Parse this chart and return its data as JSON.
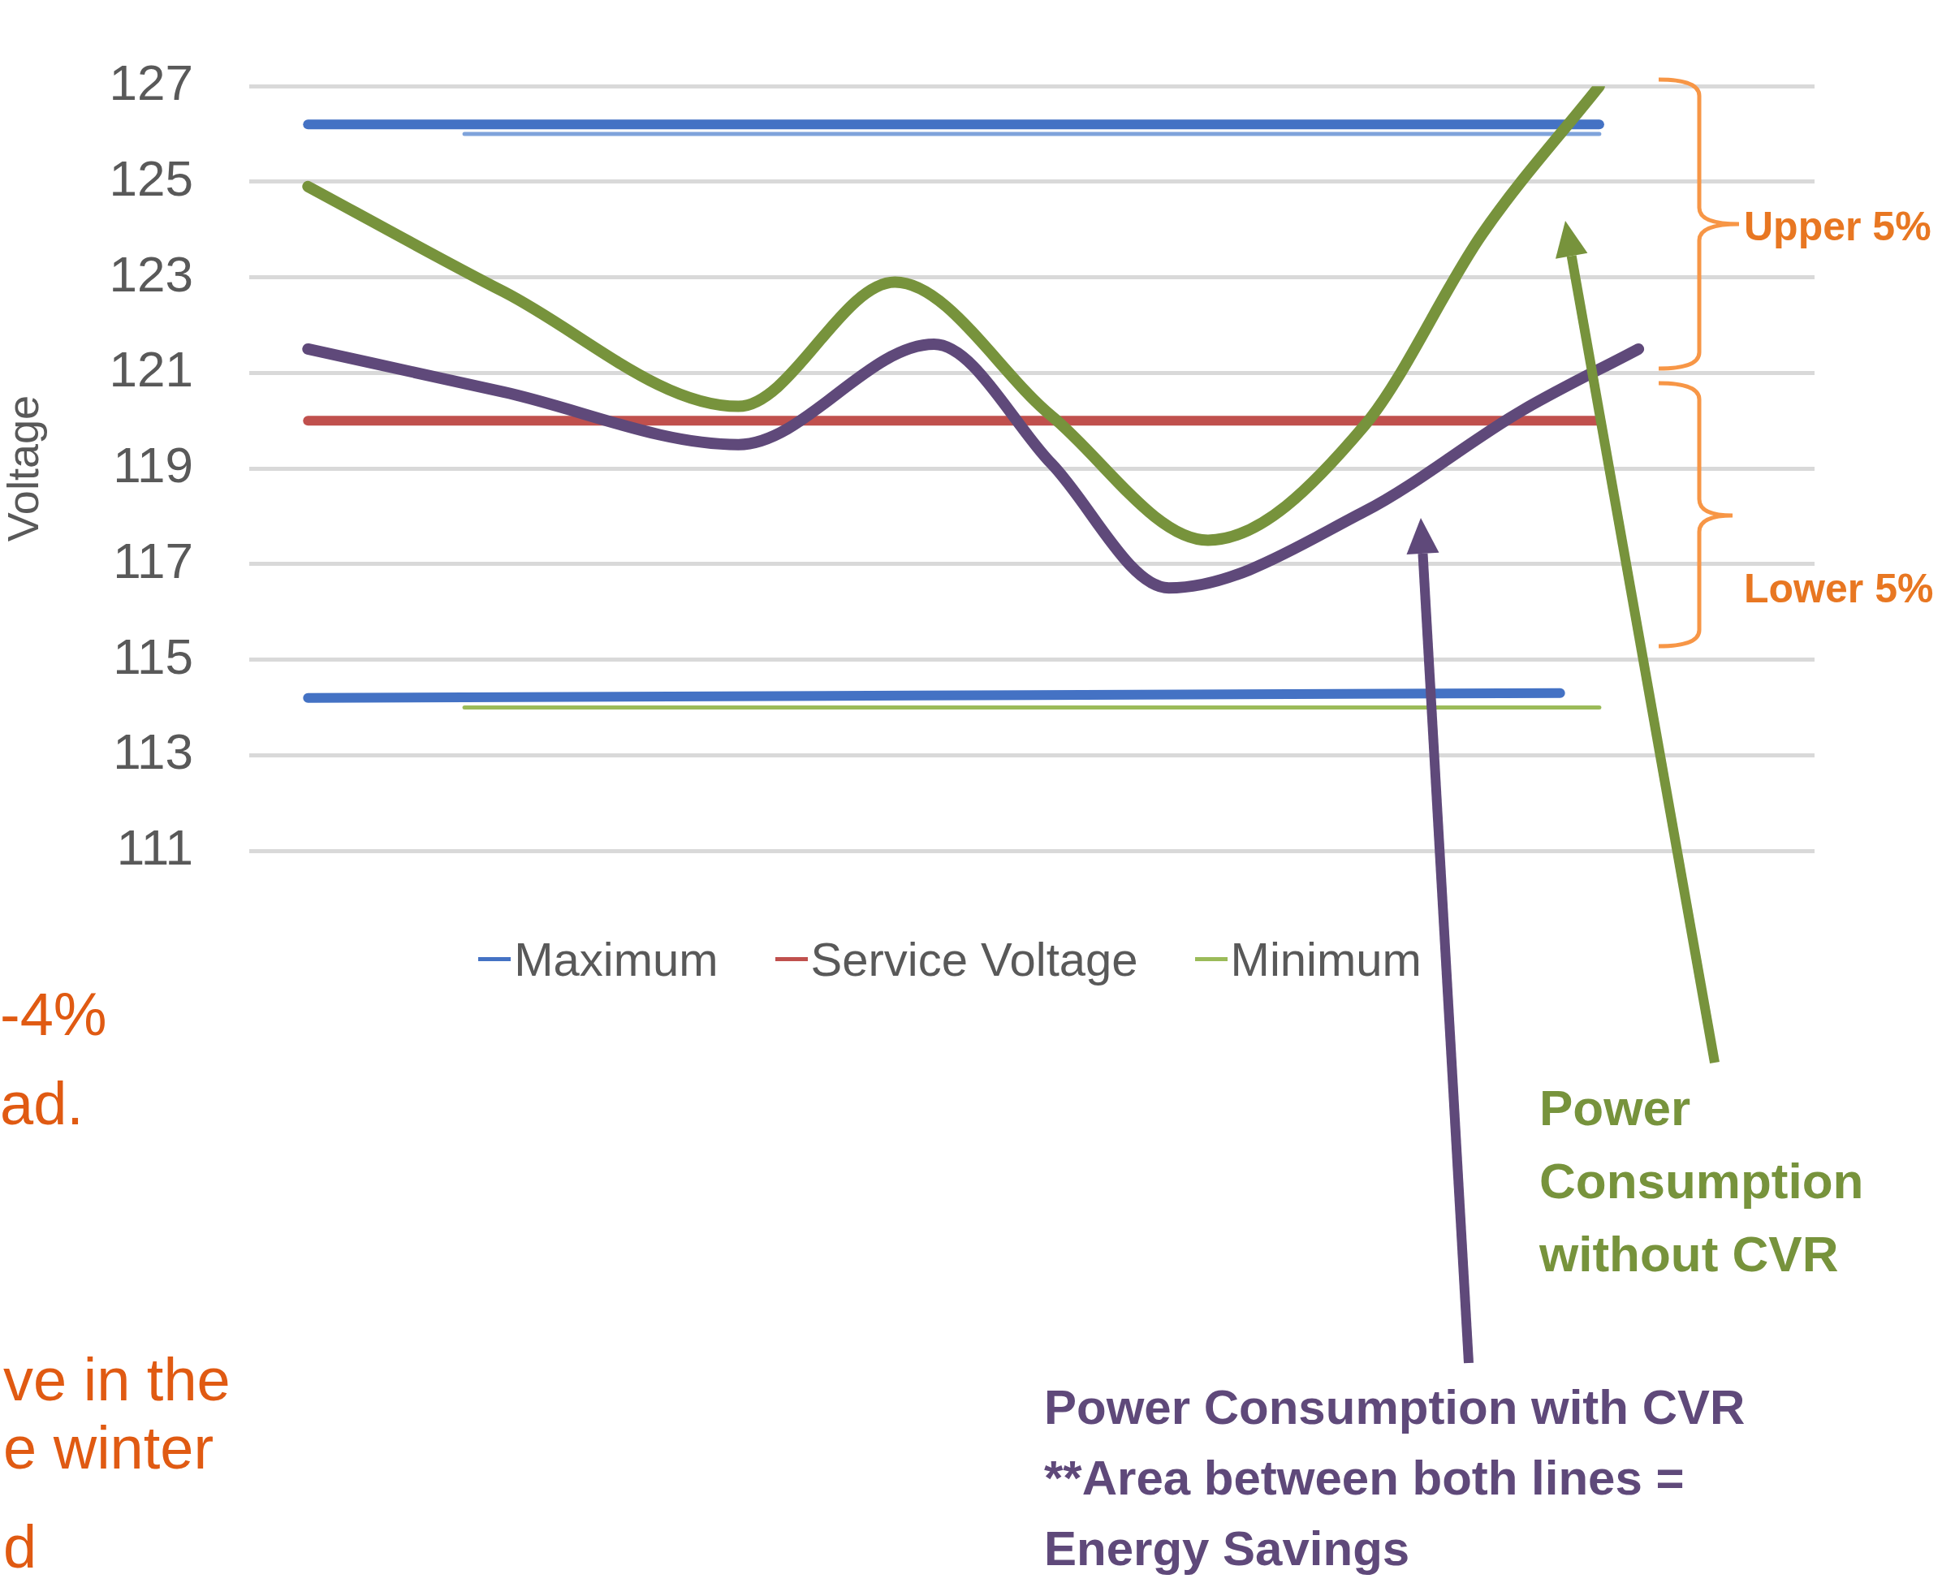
{
  "chart_data": {
    "type": "line",
    "ylabel": "Voltage",
    "categories": [
      null,
      null,
      null,
      null,
      null,
      null,
      null,
      null,
      null,
      null,
      null,
      null,
      null,
      null,
      null,
      null,
      null,
      null,
      null,
      null,
      null,
      null,
      null,
      null,
      null,
      null,
      null,
      null,
      null,
      null,
      null,
      null,
      null,
      null,
      null,
      null,
      null,
      null,
      null,
      null
    ],
    "series": [
      {
        "name": "Maximum",
        "color": "#4472c4",
        "values": [
          null,
          126.2,
          null,
          null,
          null,
          null,
          null,
          null,
          null,
          null,
          null,
          null,
          null,
          null,
          null,
          null,
          null,
          null,
          null,
          null,
          null,
          null,
          null,
          null,
          null,
          null,
          null,
          null,
          null,
          null,
          null,
          null,
          null,
          null,
          126.2,
          null,
          null,
          null,
          null,
          null
        ]
      },
      {
        "color": "#7fa3db",
        "values": [
          null,
          null,
          null,
          null,
          null,
          126.0,
          null,
          null,
          null,
          null,
          null,
          null,
          null,
          null,
          null,
          null,
          null,
          null,
          null,
          null,
          null,
          null,
          null,
          null,
          null,
          null,
          null,
          null,
          null,
          null,
          null,
          null,
          null,
          null,
          126.0,
          null,
          null,
          null,
          null,
          null
        ]
      },
      {
        "name": "Service Voltage",
        "color": "#c0504d",
        "values": [
          null,
          120.0,
          null,
          null,
          null,
          null,
          null,
          null,
          null,
          null,
          null,
          null,
          null,
          null,
          null,
          null,
          null,
          null,
          null,
          null,
          null,
          null,
          null,
          null,
          null,
          null,
          null,
          null,
          null,
          null,
          null,
          null,
          null,
          null,
          120.0,
          null,
          null,
          null,
          null,
          null
        ]
      },
      {
        "color": "#4472c4",
        "values": [
          null,
          114.2,
          null,
          null,
          null,
          null,
          null,
          null,
          null,
          null,
          null,
          null,
          null,
          null,
          null,
          null,
          null,
          null,
          null,
          null,
          null,
          null,
          null,
          null,
          null,
          null,
          null,
          null,
          null,
          null,
          null,
          null,
          null,
          114.3,
          null,
          null,
          null,
          null,
          null,
          null
        ]
      },
      {
        "name": "Minimum",
        "color": "#9bbb59",
        "values": [
          null,
          null,
          null,
          null,
          null,
          114.0,
          null,
          null,
          null,
          null,
          null,
          null,
          null,
          null,
          null,
          null,
          null,
          null,
          null,
          null,
          null,
          null,
          null,
          null,
          null,
          null,
          null,
          null,
          null,
          null,
          null,
          null,
          null,
          null,
          114.0,
          null,
          null,
          null,
          null,
          null
        ]
      },
      {
        "color": "#77933c",
        "values": [
          null,
          124.9,
          null,
          null,
          null,
          null,
          122.7,
          null,
          null,
          null,
          null,
          null,
          120.3,
          null,
          null,
          null,
          122.9,
          null,
          null,
          null,
          120.1,
          null,
          null,
          null,
          117.5,
          null,
          null,
          null,
          119.9,
          null,
          null,
          123.9,
          null,
          null,
          127.0,
          null,
          null,
          null,
          null,
          null
        ]
      },
      {
        "color": "#5f497a",
        "values": [
          null,
          121.5,
          null,
          null,
          null,
          null,
          120.6,
          null,
          null,
          null,
          null,
          null,
          119.5,
          null,
          null,
          null,
          null,
          121.6,
          null,
          null,
          119.1,
          null,
          null,
          116.5,
          null,
          null,
          null,
          null,
          118.1,
          null,
          null,
          null,
          120.2,
          null,
          null,
          121.5,
          null,
          null,
          null,
          null
        ]
      }
    ],
    "ylim": [
      111,
      127
    ],
    "yticks": [
      111,
      113,
      115,
      117,
      119,
      121,
      123,
      125,
      127
    ],
    "grid": "y",
    "legend": "bottom",
    "tick_labels": "y",
    "annotations": [
      "Upper 5%",
      "Lower 5%",
      "Power\nConsumption\nwithout CVR",
      "Power Consumption with CVR\n**Area between both lines =\nEnergy Savings",
      "-4%",
      "ad.",
      "ve in the",
      "e winter",
      "d"
    ]
  }
}
